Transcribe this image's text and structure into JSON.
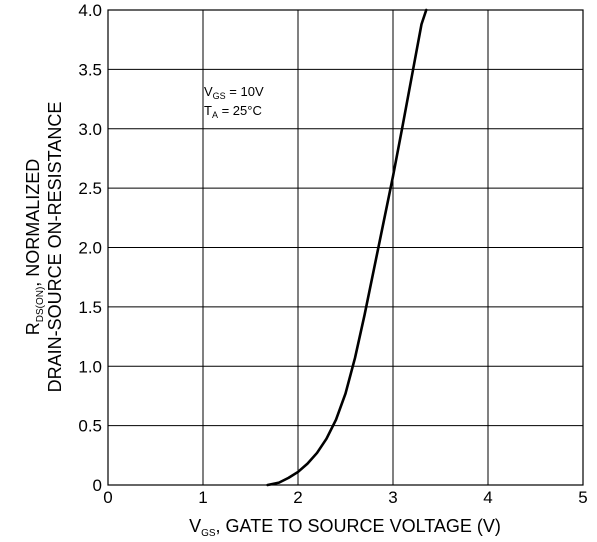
{
  "chart_data": {
    "type": "line",
    "title": "",
    "xlabel": {
      "main": "V",
      "sub": "GS",
      "rest": ", GATE TO SOURCE VOLTAGE (V)"
    },
    "ylabel": {
      "line1_main": "R",
      "line1_sub": "DS(ON)",
      "line1_rest": ", NORMALIZED",
      "line2": "DRAIN-SOURCE ON-RESISTANCE"
    },
    "xlim": [
      0,
      5
    ],
    "ylim": [
      0,
      4.0
    ],
    "xticks": [
      0,
      1,
      2,
      3,
      4,
      5
    ],
    "xtick_labels": [
      "0",
      "1",
      "2",
      "3",
      "4",
      "5"
    ],
    "yticks": [
      0,
      0.5,
      1.0,
      1.5,
      2.0,
      2.5,
      3.0,
      3.5,
      4.0
    ],
    "ytick_labels": [
      "0",
      "0.5",
      "1.0",
      "1.5",
      "2.0",
      "2.5",
      "3.0",
      "3.5",
      "4.0"
    ],
    "grid": true,
    "annotations": [
      {
        "main": "V",
        "sub": "GS",
        "rest": " = 10V"
      },
      {
        "main": "T",
        "sub": "A",
        "rest": " = 25°C"
      }
    ],
    "series": [
      {
        "color": "#000000",
        "x": [
          1.68,
          1.8,
          1.9,
          2.0,
          2.1,
          2.2,
          2.3,
          2.4,
          2.5,
          2.6,
          2.7,
          2.8,
          2.9,
          3.0,
          3.1,
          3.2,
          3.3,
          3.35
        ],
        "y": [
          0.0,
          0.02,
          0.06,
          0.11,
          0.18,
          0.27,
          0.39,
          0.55,
          0.77,
          1.07,
          1.43,
          1.82,
          2.21,
          2.6,
          3.02,
          3.45,
          3.88,
          4.0
        ]
      }
    ]
  }
}
